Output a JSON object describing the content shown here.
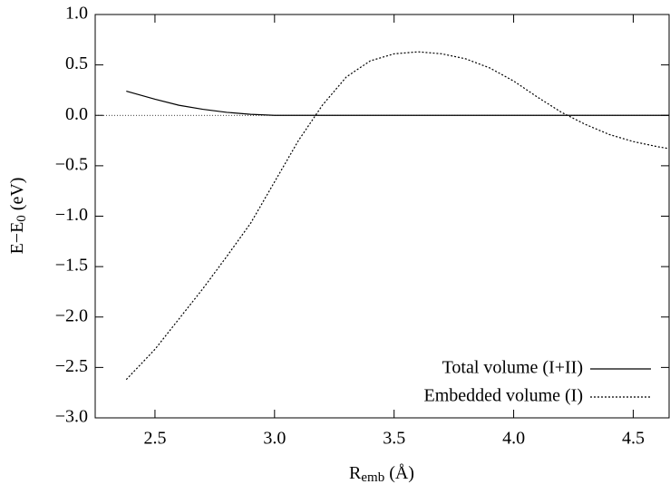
{
  "chart_data": {
    "type": "line",
    "xlabel": {
      "main": "R",
      "sub": "emb",
      "rest": " (Å)"
    },
    "ylabel": {
      "main": "E−E",
      "sub": "0",
      "rest": " (eV)"
    },
    "xlim": [
      2.25,
      4.65
    ],
    "ylim": [
      -3.0,
      1.0
    ],
    "xticks": [
      2.5,
      {
        "value": 3.0,
        "label": "3.0"
      },
      3.5,
      {
        "value": 4.0,
        "label": "4.0"
      },
      4.5
    ],
    "yticks": [
      {
        "value": 1.0,
        "label": "1.0"
      },
      {
        "value": 0.5,
        "label": "0.5"
      },
      {
        "value": 0.0,
        "label": "0.0"
      },
      {
        "value": -0.5,
        "label": "−0.5"
      },
      {
        "value": -1.0,
        "label": "−1.0"
      },
      {
        "value": -1.5,
        "label": "−1.5"
      },
      {
        "value": -2.0,
        "label": "−2.0"
      },
      {
        "value": -2.5,
        "label": "−2.5"
      },
      {
        "value": -3.0,
        "label": "−3.0"
      }
    ],
    "zero_line": true,
    "legend": "lower right",
    "series": [
      {
        "name": "Total volume (I+II)",
        "color": "#000000",
        "dash": "solid",
        "x": [
          2.38,
          2.5,
          2.6,
          2.7,
          2.8,
          2.9,
          3.0,
          3.5,
          4.0,
          4.5,
          4.65
        ],
        "values": [
          0.24,
          0.16,
          0.1,
          0.06,
          0.03,
          0.01,
          0.0,
          0.0,
          0.0,
          0.0,
          0.0
        ]
      },
      {
        "name": "Embedded volume (I)",
        "color": "#000000",
        "dash": "dotted",
        "x": [
          2.38,
          2.5,
          2.6,
          2.7,
          2.8,
          2.9,
          3.0,
          3.1,
          3.2,
          3.3,
          3.4,
          3.5,
          3.6,
          3.7,
          3.8,
          3.9,
          4.0,
          4.1,
          4.2,
          4.3,
          4.4,
          4.5,
          4.6,
          4.65
        ],
        "values": [
          -2.62,
          -2.32,
          -2.02,
          -1.72,
          -1.4,
          -1.07,
          -0.66,
          -0.25,
          0.1,
          0.38,
          0.54,
          0.61,
          0.63,
          0.61,
          0.56,
          0.47,
          0.34,
          0.18,
          0.03,
          -0.09,
          -0.19,
          -0.26,
          -0.31,
          -0.33
        ]
      }
    ]
  }
}
